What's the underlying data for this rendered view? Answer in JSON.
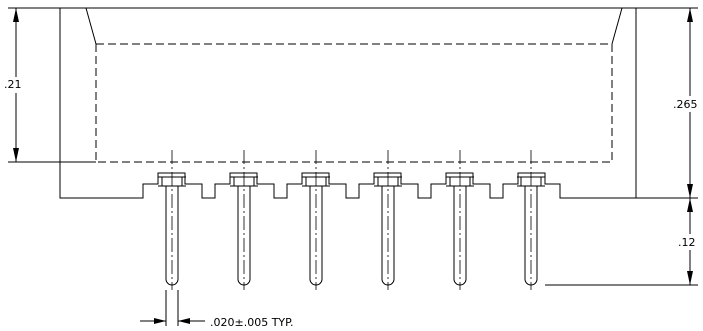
{
  "dimensions": {
    "left_height": ".21",
    "right_height": ".265",
    "pin_length": ".12",
    "pin_width": ".020±.005 TYP."
  },
  "pin_count": 6
}
